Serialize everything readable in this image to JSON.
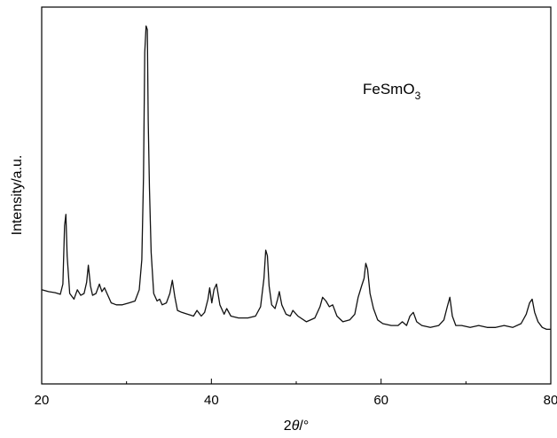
{
  "chart_data": {
    "type": "line",
    "title": "",
    "xlabel_main": "2",
    "xlabel_symbol": "θ",
    "xlabel_unit": "/°",
    "ylabel": "Intensity/a.u.",
    "xlim": [
      20,
      80
    ],
    "ylim": [
      0,
      100
    ],
    "x_ticks": [
      20,
      40,
      60,
      80
    ],
    "y_ticks_labeled": false,
    "grid": false,
    "annotation": {
      "text": "FeSmO",
      "subscript": "3"
    },
    "series": [
      {
        "color": "#111111",
        "x": [
          20.0,
          20.8,
          21.6,
          22.2,
          22.5,
          22.7,
          22.85,
          23.0,
          23.3,
          23.8,
          24.2,
          24.6,
          25.0,
          25.3,
          25.5,
          25.75,
          26.0,
          26.4,
          26.8,
          27.1,
          27.4,
          27.8,
          28.2,
          28.8,
          29.5,
          30.3,
          31.0,
          31.5,
          31.8,
          32.0,
          32.15,
          32.3,
          32.45,
          32.55,
          32.7,
          32.9,
          33.2,
          33.6,
          33.9,
          34.2,
          34.7,
          35.1,
          35.4,
          35.7,
          36.0,
          36.5,
          37.2,
          37.9,
          38.3,
          38.8,
          39.2,
          39.6,
          39.8,
          40.05,
          40.3,
          40.6,
          41.0,
          41.5,
          41.8,
          42.3,
          43.2,
          44.3,
          45.2,
          45.8,
          46.2,
          46.4,
          46.6,
          46.8,
          47.1,
          47.5,
          47.8,
          48.0,
          48.3,
          48.8,
          49.3,
          49.6,
          50.2,
          51.2,
          52.2,
          52.8,
          53.1,
          53.5,
          53.9,
          54.3,
          54.8,
          55.5,
          56.3,
          56.9,
          57.3,
          57.7,
          58.0,
          58.2,
          58.4,
          58.7,
          59.1,
          59.6,
          60.2,
          61.2,
          62.0,
          62.5,
          63.0,
          63.4,
          63.8,
          64.2,
          64.8,
          65.8,
          66.8,
          67.4,
          67.8,
          68.1,
          68.4,
          68.8,
          69.5,
          70.5,
          71.5,
          72.5,
          73.5,
          74.5,
          75.5,
          76.5,
          77.1,
          77.5,
          77.8,
          78.1,
          78.5,
          79.0,
          79.5,
          80.0
        ],
        "y": [
          25.0,
          24.5,
          24.2,
          23.8,
          26.5,
          42.0,
          45.0,
          34.0,
          24.0,
          22.5,
          25.0,
          23.5,
          24.0,
          27.0,
          31.5,
          26.0,
          23.5,
          24.0,
          26.5,
          24.5,
          25.5,
          23.5,
          21.5,
          21.0,
          21.0,
          21.5,
          22.0,
          25.0,
          33.0,
          55.0,
          88.0,
          95.0,
          94.0,
          70.0,
          52.0,
          35.0,
          24.0,
          22.0,
          22.5,
          21.0,
          21.5,
          24.0,
          27.5,
          23.0,
          19.5,
          19.0,
          18.5,
          18.0,
          19.5,
          18.0,
          19.0,
          22.5,
          25.5,
          21.5,
          25.0,
          26.5,
          21.0,
          18.5,
          20.0,
          18.0,
          17.5,
          17.5,
          18.0,
          20.5,
          28.0,
          35.5,
          34.0,
          26.0,
          21.0,
          20.0,
          22.5,
          24.5,
          21.0,
          18.5,
          18.0,
          19.5,
          18.0,
          16.5,
          17.5,
          20.5,
          23.0,
          22.0,
          20.5,
          21.0,
          18.0,
          16.5,
          17.0,
          18.5,
          23.0,
          26.0,
          28.0,
          32.0,
          30.5,
          24.0,
          20.0,
          17.0,
          16.0,
          15.5,
          15.5,
          16.5,
          15.5,
          18.0,
          19.0,
          16.5,
          15.5,
          15.0,
          15.5,
          17.0,
          20.5,
          23.0,
          18.0,
          15.5,
          15.5,
          15.0,
          15.5,
          15.0,
          15.0,
          15.5,
          15.0,
          16.0,
          18.5,
          21.5,
          22.5,
          19.0,
          16.5,
          15.0,
          14.5,
          14.5
        ]
      }
    ]
  }
}
